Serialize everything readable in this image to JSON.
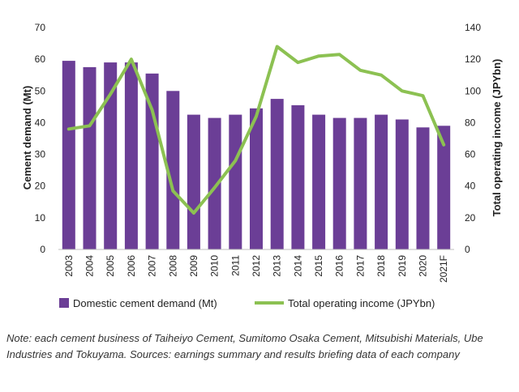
{
  "chart_data": {
    "type": "bar+line",
    "categories": [
      "2003",
      "2004",
      "2005",
      "2006",
      "2007",
      "2008",
      "2009",
      "2010",
      "2011",
      "2012",
      "2013",
      "2014",
      "2015",
      "2016",
      "2017",
      "2018",
      "2019",
      "2020",
      "2021F"
    ],
    "series": [
      {
        "name": "Domestic cement demand (Mt)",
        "type": "bar",
        "axis": "left",
        "color": "#6b3e96",
        "values": [
          59.5,
          57.5,
          59,
          59,
          55.5,
          50,
          42.5,
          41.5,
          42.5,
          44.5,
          47.5,
          45.5,
          42.5,
          41.5,
          41.5,
          42.5,
          41,
          38.5,
          39
        ]
      },
      {
        "name": "Total operating income (JPYbn)",
        "type": "line",
        "axis": "right",
        "color": "#8cc152",
        "values": [
          76,
          78,
          98,
          120,
          88,
          37,
          23,
          39,
          56,
          84,
          128,
          118,
          122,
          123,
          113,
          110,
          100,
          97,
          66
        ]
      }
    ],
    "ylabel": "Cement demand (Mt)",
    "y2label": "Total operating income (JPYbn)",
    "ylim": [
      0,
      70
    ],
    "y2lim": [
      0,
      140
    ],
    "yticks": [
      0,
      10,
      20,
      30,
      40,
      50,
      60,
      70
    ],
    "y2ticks": [
      0,
      20,
      40,
      60,
      80,
      100,
      120,
      140
    ],
    "grid": false,
    "legend": "bottom"
  },
  "note": "Note: each cement business of Taiheiyo Cement, Sumitomo Osaka Cement, Mitsubishi Materials, Ube Industries and Tokuyama. Sources: earnings summary and results briefing data of each company"
}
